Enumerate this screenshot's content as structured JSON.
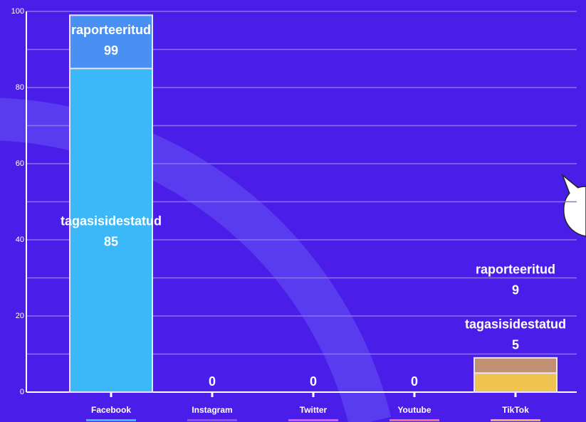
{
  "chart_data": {
    "type": "bar",
    "categories": [
      "Facebook",
      "Instagram",
      "Twitter",
      "Youtube",
      "TikTok"
    ],
    "category_colors": [
      "#3bb8f8",
      "#8a4fe8",
      "#d35af0",
      "#f0707a",
      "#f2a95a"
    ],
    "series": [
      {
        "name": "raporteeritud",
        "colors": [
          "#4a8ff2",
          "#8a4fe8",
          "#d35af0",
          "#f0707a",
          "#c29072"
        ],
        "values": [
          99,
          0,
          0,
          0,
          9
        ]
      },
      {
        "name": "tagasisidestatud",
        "colors": [
          "#3bb8f8",
          "#8a4fe8",
          "#d35af0",
          "#f0707a",
          "#efc350"
        ],
        "values": [
          85,
          0,
          0,
          0,
          5
        ]
      }
    ],
    "ylim": [
      0,
      100
    ],
    "yticks": [
      0,
      20,
      40,
      60,
      80,
      100
    ],
    "minor_yticks": [
      10,
      30,
      50,
      70,
      90
    ],
    "grid": true
  }
}
